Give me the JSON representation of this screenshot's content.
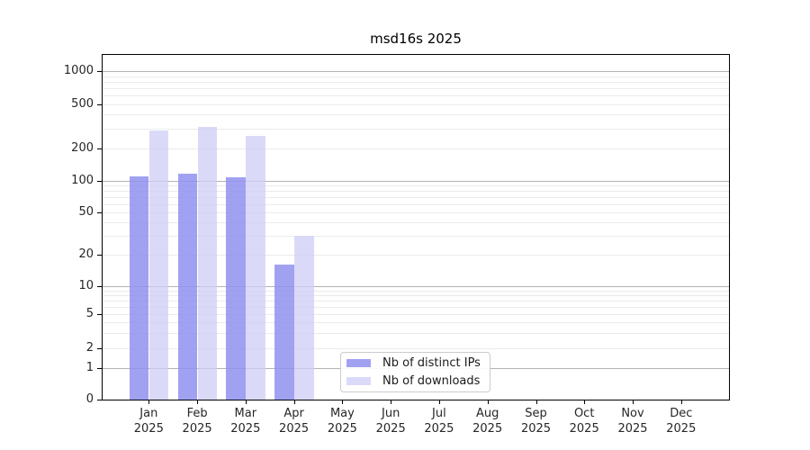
{
  "title": "msd16s 2025",
  "chart_data": {
    "type": "bar",
    "title": "msd16s 2025",
    "yscale": "symlog",
    "categories": [
      "Jan",
      "Feb",
      "Mar",
      "Apr",
      "May",
      "Jun",
      "Jul",
      "Aug",
      "Sep",
      "Oct",
      "Nov",
      "Dec"
    ],
    "year": "2025",
    "series": [
      {
        "name": "Nb of distinct IPs",
        "color": "rgba(145,145,238,0.85)",
        "values": [
          110,
          115,
          107,
          16,
          0,
          0,
          0,
          0,
          0,
          0,
          0,
          0
        ]
      },
      {
        "name": "Nb of downloads",
        "color": "rgba(206,206,246,0.75)",
        "values": [
          290,
          310,
          260,
          30,
          0,
          0,
          0,
          0,
          0,
          0,
          0,
          0
        ]
      }
    ],
    "yticks": [
      0,
      1,
      2,
      5,
      10,
      20,
      50,
      100,
      200,
      500,
      1000
    ],
    "ylim": [
      0,
      1400
    ],
    "grid": "horizontal major and minor",
    "legend_position": "lower center inside plot"
  },
  "colors": {
    "major_gridline": "#b3b3b3",
    "minor_gridline": "#ebebeb",
    "spine": "#000000",
    "tick_label": "#262626",
    "legend_border": "#cccccc",
    "background": "#ffffff"
  }
}
